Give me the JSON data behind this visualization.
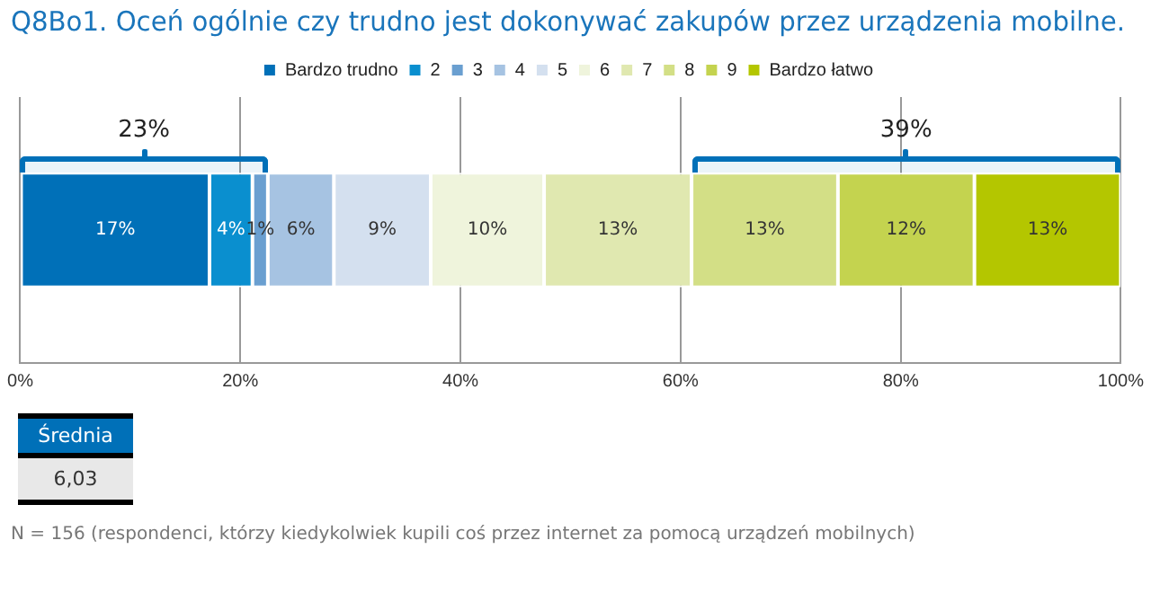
{
  "chart_data": {
    "type": "bar",
    "orientation": "horizontal",
    "stacked": true,
    "title": "Q8Bo1. Oceń ogólnie czy trudno jest dokonywać zakupów przez urządzenia mobilne.",
    "categories": [
      null
    ],
    "series": [
      {
        "name": "Bardzo trudno",
        "color": "#0070b8",
        "values": [
          17.2
        ],
        "value_labels": [
          "17%"
        ]
      },
      {
        "name": "2",
        "color": "#0a8fcf",
        "values": [
          3.9
        ],
        "value_labels": [
          "4%"
        ]
      },
      {
        "name": "3",
        "color": "#6a9fd0",
        "values": [
          1.4
        ],
        "value_labels": [
          "1%"
        ]
      },
      {
        "name": "4",
        "color": "#a6c3e2",
        "values": [
          6.0
        ],
        "value_labels": [
          "6%"
        ]
      },
      {
        "name": "5",
        "color": "#d4e0ef",
        "values": [
          8.8
        ],
        "value_labels": [
          "9%"
        ]
      },
      {
        "name": "6",
        "color": "#eff4dc",
        "values": [
          10.3
        ],
        "value_labels": [
          "10%"
        ]
      },
      {
        "name": "7",
        "color": "#e0e8b0",
        "values": [
          13.4
        ],
        "value_labels": [
          "13%"
        ]
      },
      {
        "name": "8",
        "color": "#d3df86",
        "values": [
          13.3
        ],
        "value_labels": [
          "13%"
        ]
      },
      {
        "name": "9",
        "color": "#c4d34f",
        "values": [
          12.4
        ],
        "value_labels": [
          "12%"
        ]
      },
      {
        "name": "Bardzo łatwo",
        "color": "#b4c600",
        "values": [
          13.3
        ],
        "value_labels": [
          "13%"
        ]
      }
    ],
    "xlim": [
      0,
      100
    ],
    "xticks": [
      {
        "value": 0,
        "label": "0%"
      },
      {
        "value": 20,
        "label": "20%"
      },
      {
        "value": 40,
        "label": "40%"
      },
      {
        "value": 60,
        "label": "60%"
      },
      {
        "value": 80,
        "label": "80%"
      },
      {
        "value": 100,
        "label": "100%"
      }
    ],
    "grid": "x",
    "legend": "top",
    "bands": [
      {
        "axis": "x",
        "from": 0,
        "to": 22.5,
        "label": "23%",
        "color": "#0070b8"
      },
      {
        "axis": "x",
        "from": 61,
        "to": 100,
        "label": "39%",
        "color": "#0070b8"
      }
    ],
    "annotations": [
      "Średnia",
      "6,03",
      "N = 156 (respondenci, którzy kiedykolwiek kupili coś przez internet za pomocą urządzeń mobilnych)"
    ]
  }
}
